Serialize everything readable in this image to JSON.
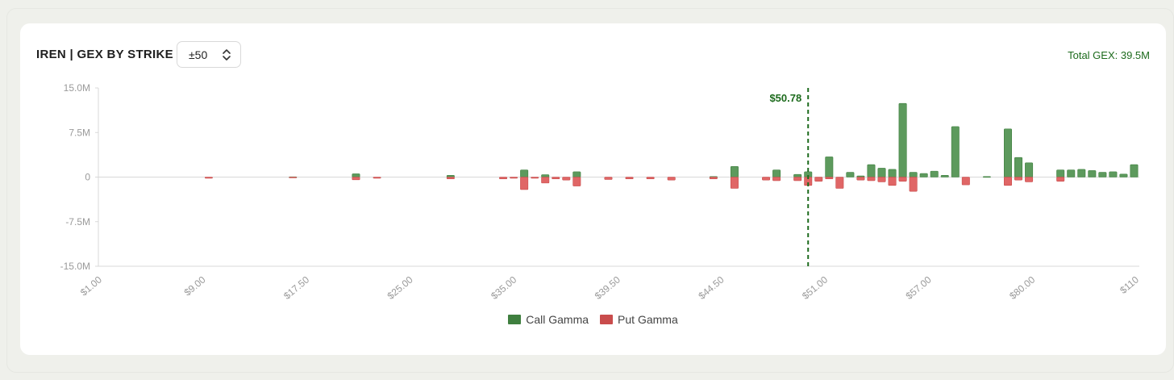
{
  "header": {
    "title": "IREN | GEX BY STRIKE",
    "range_value": "±50",
    "total_gex": "Total GEX: 39.5M"
  },
  "colors": {
    "call": "#5d9a5d",
    "call_edge": "#3f7f3f",
    "put": "#e06666",
    "put_edge": "#c94c4c",
    "spot_line": "#1d6b1d",
    "axis": "#d8d8d8",
    "tick_text": "#9a9a9a"
  },
  "chart_data": {
    "type": "bar",
    "title": "IREN | GEX BY STRIKE",
    "ylim": [
      -15000000,
      15000000
    ],
    "y_ticks": [
      {
        "value": 15000000,
        "label": "15.0M"
      },
      {
        "value": 7500000,
        "label": "7.5M"
      },
      {
        "value": 0,
        "label": "0"
      },
      {
        "value": -7500000,
        "label": "-7.5M"
      },
      {
        "value": -15000000,
        "label": "-15.0M"
      }
    ],
    "x_tick_labels": [
      "$1.00",
      "$9.00",
      "$17.50",
      "$25.00",
      "$35.00",
      "$39.50",
      "$44.50",
      "$51.00",
      "$57.00",
      "$80.00",
      "$110"
    ],
    "spot": {
      "label": "$50.78",
      "position_index": 67.5
    },
    "grid": false,
    "legend_position": "bottom-center",
    "series": [
      {
        "name": "Call Gamma",
        "values": [
          0,
          0,
          0,
          0,
          0,
          0,
          0,
          0,
          0,
          0,
          0,
          0,
          0,
          0,
          0,
          0,
          0,
          0,
          0.05,
          0,
          0,
          0,
          0,
          0,
          0.55,
          0,
          0,
          0,
          0,
          0,
          0,
          0,
          0,
          0.3,
          0,
          0,
          0,
          0,
          0,
          0,
          1.2,
          0,
          0.4,
          0,
          0,
          0.9,
          0,
          0,
          0,
          0,
          0,
          0,
          0,
          0,
          0,
          0,
          0,
          0,
          0.1,
          0,
          1.8,
          0,
          0,
          0,
          1.2,
          0,
          0.45,
          0.9,
          0,
          3.4,
          0,
          0.8,
          0.2,
          2.1,
          1.5,
          1.3,
          12.4,
          0.8,
          0.6,
          1.0,
          0.3,
          8.5,
          0,
          0,
          0.1,
          0,
          8.1,
          3.3,
          2.4,
          0,
          0,
          1.2,
          1.2,
          1.3,
          1.1,
          0.8,
          0.9,
          0.5,
          2.1
        ]
      },
      {
        "name": "Put Gamma",
        "values": [
          0,
          0,
          0,
          0,
          0,
          0,
          0,
          0,
          0,
          0,
          -0.2,
          0,
          0,
          0,
          0,
          0,
          0,
          0,
          -0.05,
          0,
          0,
          0,
          0,
          0,
          -0.45,
          0,
          -0.2,
          0,
          0,
          0,
          0,
          0,
          0,
          -0.3,
          0,
          0,
          0,
          0,
          -0.3,
          -0.2,
          -2.1,
          -0.2,
          -1.0,
          -0.3,
          -0.5,
          -1.5,
          0,
          0,
          -0.4,
          0,
          -0.3,
          0,
          -0.3,
          0,
          -0.5,
          0,
          0,
          0,
          -0.3,
          0,
          -1.9,
          0,
          0,
          -0.5,
          -0.6,
          0,
          -0.6,
          -1.4,
          -0.7,
          -0.3,
          -1.9,
          0,
          -0.5,
          -0.6,
          -0.8,
          -1.4,
          -0.7,
          -2.4,
          0,
          0,
          0,
          0,
          -1.3,
          0,
          0,
          0,
          -1.4,
          -0.5,
          -0.8,
          0,
          0,
          -0.7,
          0,
          0,
          0,
          0,
          0,
          0,
          0
        ]
      }
    ]
  },
  "legend": {
    "call_label": "Call Gamma",
    "put_label": "Put Gamma"
  }
}
